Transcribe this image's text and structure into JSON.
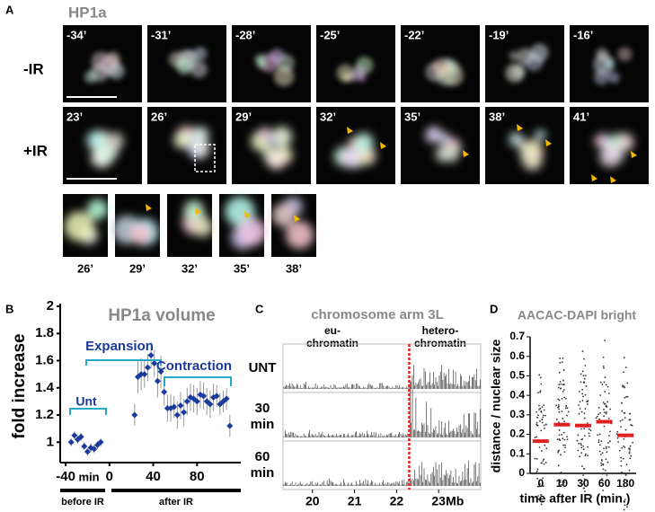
{
  "panel_a": {
    "label": "A",
    "title": "HP1a",
    "rows": [
      {
        "label": "-IR",
        "times": [
          "-34’",
          "-31’",
          "-28’",
          "-25’",
          "-22’",
          "-19’",
          "-16’"
        ]
      },
      {
        "label": "+IR",
        "times": [
          "23’",
          "26’",
          "29’",
          "32’",
          "35’",
          "38’",
          "41’"
        ]
      }
    ],
    "zoom_times": [
      "26’",
      "29’",
      "32’",
      "35’",
      "38’"
    ]
  },
  "chart_data": [
    {
      "type": "errorline",
      "panel_label": "B",
      "title": "HP1a volume",
      "ylabel": "fold increase",
      "x_unit": "min",
      "color": "#1a3a9c",
      "x": [
        -35,
        -32,
        -29,
        -26,
        -23,
        -20,
        -17,
        -14,
        -11,
        -8,
        23,
        26,
        29,
        32,
        35,
        38,
        41,
        44,
        47,
        50,
        53,
        56,
        59,
        62,
        65,
        68,
        71,
        74,
        77,
        80,
        83,
        86,
        89,
        92,
        95,
        98,
        101,
        104,
        107,
        110
      ],
      "values": [
        1.0,
        1.05,
        1.02,
        1.04,
        0.97,
        0.93,
        0.96,
        0.95,
        0.98,
        1.0,
        1.2,
        1.48,
        1.5,
        1.5,
        1.55,
        1.64,
        1.58,
        1.45,
        1.52,
        1.37,
        1.25,
        1.25,
        1.26,
        1.2,
        1.27,
        1.22,
        1.3,
        1.33,
        1.32,
        1.3,
        1.35,
        1.34,
        1.3,
        1.28,
        1.33,
        1.34,
        1.28,
        1.3,
        1.32,
        1.12
      ],
      "errors": [
        0.03,
        0.03,
        0.03,
        0.03,
        0.03,
        0.03,
        0.03,
        0.03,
        0.03,
        0.03,
        0.08,
        0.12,
        0.12,
        0.1,
        0.1,
        0.1,
        0.1,
        0.12,
        0.12,
        0.1,
        0.1,
        0.1,
        0.08,
        0.1,
        0.1,
        0.1,
        0.1,
        0.1,
        0.1,
        0.1,
        0.1,
        0.1,
        0.1,
        0.1,
        0.1,
        0.08,
        0.08,
        0.08,
        0.08,
        0.08
      ],
      "xlim": [
        -45,
        120
      ],
      "ylim": [
        0.85,
        2
      ],
      "xticks": [
        -40,
        0,
        40,
        80
      ],
      "yticks": [
        1,
        1.2,
        1.4,
        1.6,
        1.8,
        2
      ],
      "annotations": [
        "Unt",
        "Expansion",
        "Contraction"
      ],
      "periods": [
        "before IR",
        "after IR"
      ]
    },
    {
      "type": "track",
      "panel_label": "C",
      "title": "chromosome arm 3L",
      "regions": [
        [
          "eu-",
          "chromatin"
        ],
        [
          "hetero-",
          "chromatin"
        ]
      ],
      "rows": [
        [
          "UNT"
        ],
        [
          "30",
          "min"
        ],
        [
          "60",
          "min"
        ]
      ],
      "x_unit": "Mb",
      "xlim": [
        19.3,
        24
      ],
      "xticks": [
        20,
        21,
        22,
        23
      ],
      "boundary": 22.3
    },
    {
      "type": "strip",
      "panel_label": "D",
      "title": "AACAC-DAPI bright",
      "ylabel": "distance / nuclear size",
      "xlabel": "time after IR (min.)",
      "categories": [
        "0",
        "10",
        "30",
        "60",
        "180"
      ],
      "values": [
        0.165,
        0.25,
        0.245,
        0.265,
        0.195
      ],
      "color": "#e02020",
      "ylim": [
        0,
        0.7
      ],
      "yticks": [
        0,
        0.1,
        0.2,
        0.3,
        0.4,
        0.5,
        0.6,
        0.7
      ]
    }
  ]
}
